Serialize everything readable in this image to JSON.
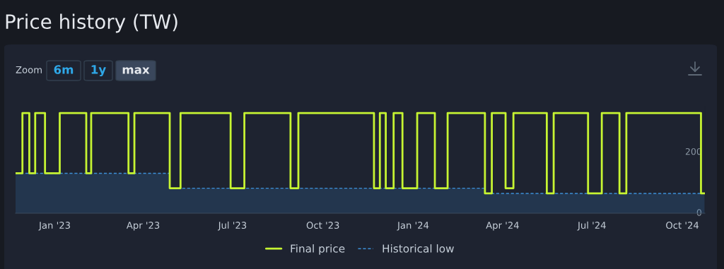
{
  "chart_data": {
    "type": "step",
    "title": "Price history (TW)",
    "annotations": [
      "Zoom",
      "6m",
      "1y",
      "max"
    ],
    "xlim": [
      "2022-11-22",
      "2024-10-24"
    ],
    "xticks": [
      {
        "value": "2023-01-01",
        "label": "Jan '23"
      },
      {
        "value": "2023-04-01",
        "label": "Apr '23"
      },
      {
        "value": "2023-07-01",
        "label": "Jul '23"
      },
      {
        "value": "2023-10-01",
        "label": "Oct '23"
      },
      {
        "value": "2024-01-01",
        "label": "Jan '24"
      },
      {
        "value": "2024-04-01",
        "label": "Apr '24"
      },
      {
        "value": "2024-07-01",
        "label": "Jul '24"
      },
      {
        "value": "2024-10-01",
        "label": "Oct '24"
      }
    ],
    "ylim": [
      0,
      350
    ],
    "yticks": [
      0,
      200
    ],
    "grid": false,
    "legend": "bottom",
    "series": [
      {
        "name": "Final price",
        "color": "#c6f432",
        "line_style": "solid",
        "x": [
          "2022-11-22",
          "2022-11-29",
          "2022-12-06",
          "2022-12-12",
          "2022-12-22",
          "2023-01-06",
          "2023-02-02",
          "2023-02-07",
          "2023-03-17",
          "2023-03-23",
          "2023-04-28",
          "2023-05-09",
          "2023-06-29",
          "2023-07-13",
          "2023-08-29",
          "2023-09-06",
          "2023-11-22",
          "2023-11-28",
          "2023-12-04",
          "2023-12-12",
          "2023-12-21",
          "2024-01-05",
          "2024-01-23",
          "2024-02-05",
          "2024-03-14",
          "2024-03-21",
          "2024-04-04",
          "2024-04-12",
          "2024-05-16",
          "2024-05-23",
          "2024-06-27",
          "2024-07-11",
          "2024-07-29",
          "2024-08-05",
          "2024-10-20",
          "2024-10-24"
        ],
        "values": [
          131,
          329,
          131,
          329,
          131,
          329,
          131,
          329,
          131,
          329,
          82,
          329,
          82,
          329,
          82,
          329,
          82,
          329,
          82,
          329,
          82,
          329,
          82,
          329,
          65,
          329,
          82,
          329,
          65,
          329,
          65,
          329,
          65,
          329,
          65,
          65
        ]
      },
      {
        "name": "Historical low",
        "type": "area",
        "color": "#3d8fd6",
        "line_style": "dashed",
        "x": [
          "2022-11-22",
          "2023-04-28",
          "2023-04-28",
          "2024-03-14",
          "2024-03-14",
          "2024-10-24"
        ],
        "values": [
          131,
          131,
          82,
          82,
          65,
          65
        ]
      }
    ]
  }
}
